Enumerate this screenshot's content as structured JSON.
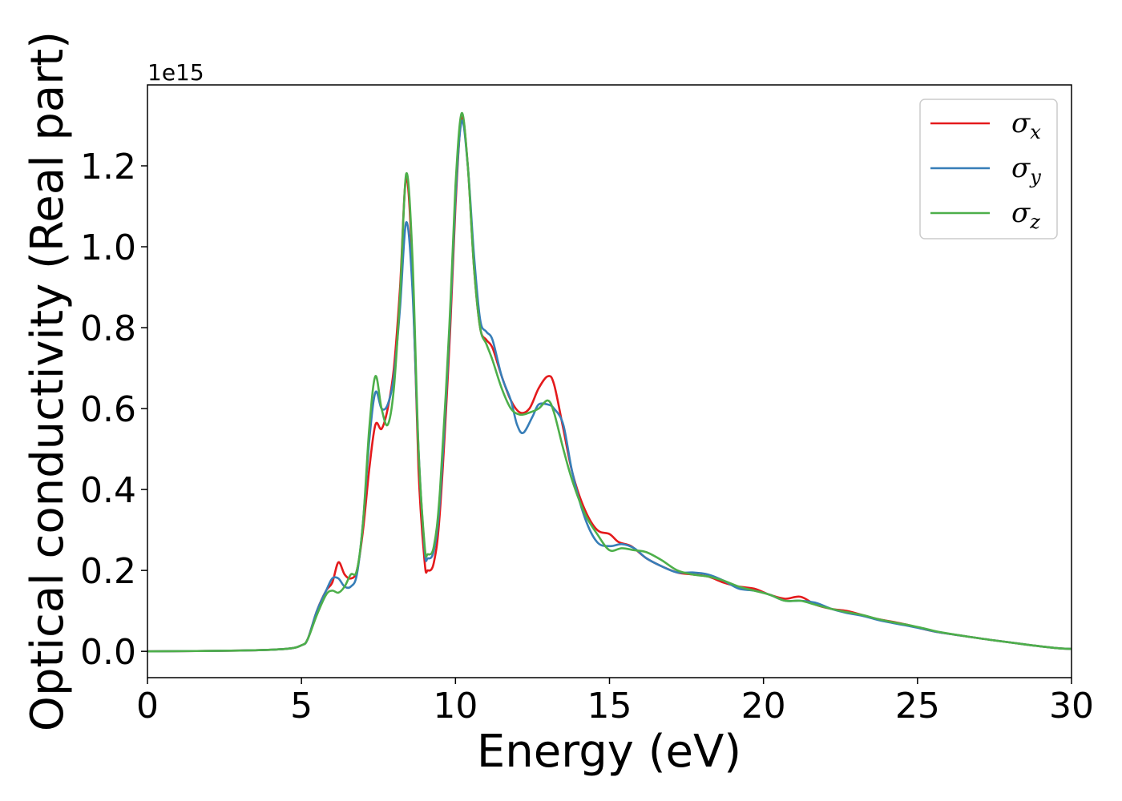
{
  "chart_data": {
    "type": "line",
    "xlabel": "Energy (eV)",
    "ylabel": "Optical conductivity (Real part)",
    "y_offset_text": "1e15",
    "xlim": [
      0,
      30
    ],
    "ylim": [
      -0.065,
      1.4
    ],
    "y_multiplier": 1000000000000000.0,
    "x_ticks": [
      0,
      5,
      10,
      15,
      20,
      25,
      30
    ],
    "x_tick_labels": [
      "0",
      "5",
      "10",
      "15",
      "20",
      "25",
      "30"
    ],
    "y_ticks": [
      0.0,
      0.2,
      0.4,
      0.6,
      0.8,
      1.0,
      1.2
    ],
    "y_tick_labels": [
      "0.0",
      "0.2",
      "0.4",
      "0.6",
      "0.8",
      "1.0",
      "1.2"
    ],
    "grid": false,
    "legend_position": "top-right",
    "series": [
      {
        "name": "σx",
        "symbol": "σ",
        "subscript": "x",
        "color": "#e41a1c",
        "points": [
          [
            0,
            0
          ],
          [
            3,
            0.002
          ],
          [
            4.5,
            0.006
          ],
          [
            5.0,
            0.015
          ],
          [
            5.2,
            0.03
          ],
          [
            5.5,
            0.1
          ],
          [
            5.8,
            0.15
          ],
          [
            6.0,
            0.17
          ],
          [
            6.2,
            0.22
          ],
          [
            6.4,
            0.19
          ],
          [
            6.6,
            0.18
          ],
          [
            6.8,
            0.2
          ],
          [
            7.0,
            0.3
          ],
          [
            7.2,
            0.45
          ],
          [
            7.4,
            0.56
          ],
          [
            7.6,
            0.55
          ],
          [
            7.8,
            0.6
          ],
          [
            8.0,
            0.7
          ],
          [
            8.2,
            0.9
          ],
          [
            8.4,
            1.17
          ],
          [
            8.6,
            0.95
          ],
          [
            8.8,
            0.45
          ],
          [
            9.0,
            0.22
          ],
          [
            9.1,
            0.2
          ],
          [
            9.3,
            0.22
          ],
          [
            9.5,
            0.35
          ],
          [
            9.8,
            0.75
          ],
          [
            10.0,
            1.1
          ],
          [
            10.2,
            1.32
          ],
          [
            10.4,
            1.2
          ],
          [
            10.6,
            0.95
          ],
          [
            10.8,
            0.8
          ],
          [
            11.0,
            0.77
          ],
          [
            11.2,
            0.75
          ],
          [
            11.5,
            0.68
          ],
          [
            11.8,
            0.62
          ],
          [
            12.1,
            0.59
          ],
          [
            12.4,
            0.6
          ],
          [
            12.7,
            0.65
          ],
          [
            13.0,
            0.68
          ],
          [
            13.2,
            0.66
          ],
          [
            13.5,
            0.55
          ],
          [
            13.8,
            0.44
          ],
          [
            14.2,
            0.35
          ],
          [
            14.6,
            0.3
          ],
          [
            15.0,
            0.29
          ],
          [
            15.3,
            0.27
          ],
          [
            15.7,
            0.26
          ],
          [
            16.2,
            0.23
          ],
          [
            16.7,
            0.21
          ],
          [
            17.2,
            0.195
          ],
          [
            17.7,
            0.19
          ],
          [
            18.2,
            0.185
          ],
          [
            18.7,
            0.17
          ],
          [
            19.2,
            0.16
          ],
          [
            19.7,
            0.155
          ],
          [
            20.2,
            0.14
          ],
          [
            20.7,
            0.13
          ],
          [
            21.2,
            0.135
          ],
          [
            21.7,
            0.115
          ],
          [
            22.2,
            0.105
          ],
          [
            22.7,
            0.1
          ],
          [
            23.2,
            0.09
          ],
          [
            23.7,
            0.08
          ],
          [
            24.2,
            0.073
          ],
          [
            24.7,
            0.065
          ],
          [
            25.2,
            0.055
          ],
          [
            25.7,
            0.047
          ],
          [
            26.5,
            0.038
          ],
          [
            27.5,
            0.027
          ],
          [
            28.5,
            0.017
          ],
          [
            29.5,
            0.008
          ],
          [
            30,
            0.006
          ]
        ]
      },
      {
        "name": "σy",
        "symbol": "σ",
        "subscript": "y",
        "color": "#377eb8",
        "points": [
          [
            0,
            0
          ],
          [
            3,
            0.002
          ],
          [
            4.5,
            0.006
          ],
          [
            5.0,
            0.015
          ],
          [
            5.2,
            0.03
          ],
          [
            5.5,
            0.1
          ],
          [
            5.8,
            0.15
          ],
          [
            6.0,
            0.18
          ],
          [
            6.2,
            0.18
          ],
          [
            6.4,
            0.16
          ],
          [
            6.6,
            0.16
          ],
          [
            6.8,
            0.19
          ],
          [
            7.0,
            0.32
          ],
          [
            7.2,
            0.52
          ],
          [
            7.4,
            0.64
          ],
          [
            7.6,
            0.6
          ],
          [
            7.8,
            0.61
          ],
          [
            8.0,
            0.68
          ],
          [
            8.2,
            0.85
          ],
          [
            8.4,
            1.06
          ],
          [
            8.6,
            0.9
          ],
          [
            8.8,
            0.5
          ],
          [
            9.0,
            0.25
          ],
          [
            9.1,
            0.23
          ],
          [
            9.3,
            0.25
          ],
          [
            9.5,
            0.38
          ],
          [
            9.8,
            0.78
          ],
          [
            10.0,
            1.12
          ],
          [
            10.2,
            1.31
          ],
          [
            10.4,
            1.2
          ],
          [
            10.6,
            0.98
          ],
          [
            10.8,
            0.82
          ],
          [
            11.0,
            0.79
          ],
          [
            11.2,
            0.77
          ],
          [
            11.5,
            0.68
          ],
          [
            11.8,
            0.62
          ],
          [
            12.0,
            0.56
          ],
          [
            12.2,
            0.54
          ],
          [
            12.5,
            0.58
          ],
          [
            12.7,
            0.61
          ],
          [
            13.0,
            0.61
          ],
          [
            13.2,
            0.6
          ],
          [
            13.5,
            0.56
          ],
          [
            13.8,
            0.44
          ],
          [
            14.2,
            0.33
          ],
          [
            14.6,
            0.27
          ],
          [
            15.0,
            0.26
          ],
          [
            15.4,
            0.265
          ],
          [
            15.8,
            0.255
          ],
          [
            16.2,
            0.23
          ],
          [
            16.7,
            0.21
          ],
          [
            17.2,
            0.195
          ],
          [
            17.7,
            0.195
          ],
          [
            18.2,
            0.19
          ],
          [
            18.7,
            0.175
          ],
          [
            19.2,
            0.155
          ],
          [
            19.7,
            0.15
          ],
          [
            20.2,
            0.14
          ],
          [
            20.7,
            0.125
          ],
          [
            21.2,
            0.125
          ],
          [
            21.7,
            0.12
          ],
          [
            22.2,
            0.105
          ],
          [
            22.7,
            0.095
          ],
          [
            23.2,
            0.088
          ],
          [
            23.7,
            0.078
          ],
          [
            24.2,
            0.07
          ],
          [
            24.7,
            0.063
          ],
          [
            25.2,
            0.055
          ],
          [
            25.7,
            0.047
          ],
          [
            26.5,
            0.038
          ],
          [
            27.5,
            0.027
          ],
          [
            28.5,
            0.017
          ],
          [
            29.5,
            0.008
          ],
          [
            30,
            0.006
          ]
        ]
      },
      {
        "name": "σz",
        "symbol": "σ",
        "subscript": "z",
        "color": "#4daf4a",
        "points": [
          [
            0,
            0
          ],
          [
            3,
            0.002
          ],
          [
            4.5,
            0.006
          ],
          [
            5.0,
            0.015
          ],
          [
            5.2,
            0.03
          ],
          [
            5.5,
            0.09
          ],
          [
            5.8,
            0.14
          ],
          [
            6.0,
            0.15
          ],
          [
            6.2,
            0.145
          ],
          [
            6.4,
            0.16
          ],
          [
            6.6,
            0.19
          ],
          [
            6.8,
            0.2
          ],
          [
            7.0,
            0.32
          ],
          [
            7.2,
            0.55
          ],
          [
            7.4,
            0.68
          ],
          [
            7.6,
            0.6
          ],
          [
            7.8,
            0.56
          ],
          [
            8.0,
            0.65
          ],
          [
            8.2,
            0.88
          ],
          [
            8.4,
            1.18
          ],
          [
            8.6,
            0.98
          ],
          [
            8.8,
            0.5
          ],
          [
            9.0,
            0.26
          ],
          [
            9.1,
            0.24
          ],
          [
            9.3,
            0.26
          ],
          [
            9.5,
            0.4
          ],
          [
            9.8,
            0.8
          ],
          [
            10.0,
            1.15
          ],
          [
            10.2,
            1.33
          ],
          [
            10.4,
            1.2
          ],
          [
            10.6,
            0.95
          ],
          [
            10.8,
            0.8
          ],
          [
            11.0,
            0.76
          ],
          [
            11.2,
            0.72
          ],
          [
            11.5,
            0.65
          ],
          [
            11.8,
            0.6
          ],
          [
            12.1,
            0.585
          ],
          [
            12.4,
            0.59
          ],
          [
            12.7,
            0.6
          ],
          [
            13.0,
            0.62
          ],
          [
            13.2,
            0.59
          ],
          [
            13.5,
            0.5
          ],
          [
            13.8,
            0.42
          ],
          [
            14.2,
            0.34
          ],
          [
            14.6,
            0.29
          ],
          [
            15.0,
            0.25
          ],
          [
            15.4,
            0.255
          ],
          [
            15.8,
            0.25
          ],
          [
            16.2,
            0.245
          ],
          [
            16.7,
            0.225
          ],
          [
            17.2,
            0.2
          ],
          [
            17.7,
            0.19
          ],
          [
            18.2,
            0.185
          ],
          [
            18.7,
            0.175
          ],
          [
            19.2,
            0.16
          ],
          [
            19.7,
            0.15
          ],
          [
            20.2,
            0.14
          ],
          [
            20.7,
            0.125
          ],
          [
            21.2,
            0.125
          ],
          [
            21.7,
            0.115
          ],
          [
            22.2,
            0.105
          ],
          [
            22.7,
            0.097
          ],
          [
            23.2,
            0.09
          ],
          [
            23.7,
            0.08
          ],
          [
            24.2,
            0.072
          ],
          [
            24.7,
            0.065
          ],
          [
            25.2,
            0.057
          ],
          [
            25.7,
            0.048
          ],
          [
            26.5,
            0.038
          ],
          [
            27.5,
            0.027
          ],
          [
            28.5,
            0.017
          ],
          [
            29.5,
            0.008
          ],
          [
            30,
            0.006
          ]
        ]
      }
    ]
  }
}
